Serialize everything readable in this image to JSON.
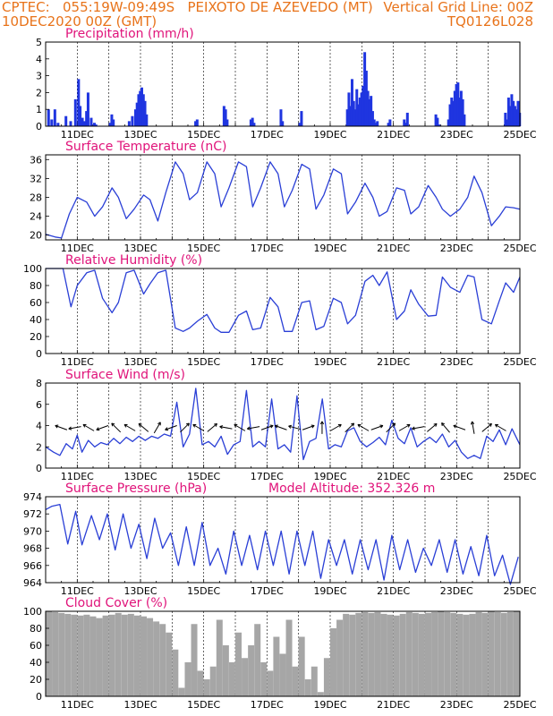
{
  "header": {
    "line1_left": "CPTEC:   055:19W-09:49S   PEIXOTO DE AZEVEDO (MT)",
    "line2_left": "10DEC2020 00Z (GMT)",
    "line2_right": "Vertical Grid Line: 00Z",
    "line3_right": "TQ0126L028"
  },
  "colors": {
    "header": "#e8731a",
    "title": "#e0137a",
    "line": "#2a3fd6",
    "bar": "#1f35e0",
    "cloud": "#a6a6a6"
  },
  "chart_data": [
    {
      "type": "bar",
      "title": "Precipitation (mm/h)",
      "x_ticks": [
        "11DEC",
        "13DEC",
        "15DEC",
        "17DEC",
        "19DEC",
        "21DEC",
        "23DEC",
        "25DEC"
      ],
      "x_range_days": [
        10,
        25
      ],
      "ylim": [
        0,
        5
      ],
      "y_ticks": [
        0,
        1,
        2,
        3,
        4,
        5
      ],
      "x": [
        10.05,
        10.15,
        10.25,
        10.35,
        10.6,
        10.75,
        10.9,
        11.0,
        11.05,
        11.12,
        11.18,
        11.25,
        11.3,
        11.4,
        11.5,
        11.55,
        12.0,
        12.05,
        12.1,
        12.6,
        12.7,
        12.8,
        12.85,
        12.9,
        12.95,
        13.0,
        13.05,
        13.1,
        13.15,
        14.7,
        14.75,
        15.6,
        15.65,
        15.7,
        16.45,
        16.5,
        16.55,
        17.4,
        17.45,
        18.0,
        18.05,
        19.5,
        19.55,
        19.6,
        19.65,
        19.7,
        19.75,
        19.8,
        19.85,
        19.9,
        19.95,
        20.0,
        20.05,
        20.1,
        20.15,
        20.2,
        20.25,
        20.3,
        20.35,
        20.4,
        20.45,
        20.8,
        20.85,
        21.3,
        21.35,
        21.4,
        22.3,
        22.35,
        22.4,
        22.7,
        22.75,
        22.8,
        22.85,
        22.9,
        22.95,
        23.0,
        23.05,
        23.1,
        23.15,
        23.2,
        24.5,
        24.55,
        24.6,
        24.65,
        24.7,
        24.75,
        24.8,
        24.85,
        24.9,
        24.95
      ],
      "values": [
        1.0,
        0.4,
        1.0,
        0.2,
        0.6,
        0.3,
        1.6,
        2.8,
        1.2,
        0.5,
        0.3,
        0.9,
        2.0,
        0.5,
        0.2,
        0.1,
        0.2,
        0.7,
        0.4,
        0.3,
        0.6,
        1.0,
        1.4,
        1.9,
        2.1,
        2.3,
        1.9,
        1.5,
        0.7,
        0.3,
        0.4,
        1.2,
        1.0,
        0.4,
        0.4,
        0.5,
        0.2,
        1.0,
        0.3,
        0.2,
        0.9,
        1.0,
        2.0,
        1.2,
        2.8,
        1.5,
        1.0,
        2.2,
        1.3,
        1.7,
        2.0,
        2.4,
        4.4,
        3.3,
        2.1,
        1.6,
        1.8,
        0.9,
        0.4,
        0.2,
        0.3,
        0.2,
        0.4,
        0.4,
        0.2,
        0.8,
        0.7,
        0.5,
        0.1,
        0.4,
        1.3,
        1.7,
        1.5,
        2.1,
        2.5,
        2.6,
        1.7,
        2.1,
        1.6,
        0.7,
        0.8,
        0.4,
        1.7,
        1.2,
        1.9,
        1.5,
        1.2,
        1.0,
        1.5,
        0.8
      ]
    },
    {
      "type": "line",
      "title": "Surface Temperature (nC)",
      "x_ticks": [
        "11DEC",
        "13DEC",
        "15DEC",
        "17DEC",
        "19DEC",
        "21DEC",
        "23DEC",
        "25DEC"
      ],
      "x_range_days": [
        10,
        25
      ],
      "ylim": [
        19,
        37
      ],
      "y_ticks": [
        20,
        24,
        28,
        32,
        36
      ],
      "x": [
        10.0,
        10.3,
        10.5,
        10.75,
        11.0,
        11.3,
        11.55,
        11.8,
        12.1,
        12.3,
        12.55,
        12.8,
        13.1,
        13.3,
        13.55,
        13.8,
        14.1,
        14.35,
        14.55,
        14.8,
        15.1,
        15.35,
        15.55,
        15.8,
        16.1,
        16.35,
        16.55,
        16.8,
        17.1,
        17.35,
        17.55,
        17.8,
        18.1,
        18.35,
        18.55,
        18.8,
        19.1,
        19.35,
        19.55,
        19.8,
        20.1,
        20.35,
        20.55,
        20.8,
        21.1,
        21.35,
        21.55,
        21.8,
        22.1,
        22.35,
        22.55,
        22.8,
        23.1,
        23.35,
        23.55,
        23.8,
        24.1,
        24.35,
        24.55,
        24.8,
        25.0
      ],
      "values": [
        20.2,
        19.6,
        19.4,
        24.5,
        28.0,
        27.0,
        24.0,
        26.0,
        30.0,
        28.0,
        23.5,
        25.5,
        28.5,
        27.5,
        23.0,
        29.0,
        35.5,
        33.0,
        27.5,
        29.0,
        35.5,
        33.0,
        26.0,
        30.0,
        35.5,
        34.5,
        26.0,
        30.0,
        35.5,
        33.0,
        26.0,
        29.5,
        35.0,
        34.0,
        25.5,
        28.5,
        34.0,
        33.0,
        24.5,
        27.0,
        31.0,
        28.0,
        24.0,
        25.0,
        30.0,
        29.5,
        24.5,
        26.0,
        30.5,
        28.0,
        25.5,
        24.0,
        25.5,
        28.0,
        32.5,
        29.0,
        22.0,
        24.0,
        26.0,
        25.8,
        25.5
      ]
    },
    {
      "type": "line",
      "title": "Relative Humidity (%)",
      "x_ticks": [
        "11DEC",
        "13DEC",
        "15DEC",
        "17DEC",
        "19DEC",
        "21DEC",
        "23DEC",
        "25DEC"
      ],
      "x_range_days": [
        10,
        25
      ],
      "ylim": [
        0,
        100
      ],
      "y_ticks": [
        0,
        20,
        40,
        60,
        80,
        100
      ],
      "x": [
        10.0,
        10.3,
        10.55,
        10.8,
        11.0,
        11.3,
        11.55,
        11.8,
        12.1,
        12.3,
        12.55,
        12.8,
        13.1,
        13.3,
        13.55,
        13.8,
        14.1,
        14.35,
        14.55,
        14.8,
        15.1,
        15.35,
        15.55,
        15.8,
        16.1,
        16.35,
        16.55,
        16.8,
        17.1,
        17.35,
        17.55,
        17.8,
        18.1,
        18.35,
        18.55,
        18.8,
        19.1,
        19.35,
        19.55,
        19.8,
        20.1,
        20.35,
        20.55,
        20.8,
        21.1,
        21.35,
        21.55,
        21.8,
        22.1,
        22.35,
        22.55,
        22.8,
        23.1,
        23.35,
        23.55,
        23.8,
        24.1,
        24.35,
        24.55,
        24.8,
        25.0
      ],
      "values": [
        100,
        100,
        100,
        55,
        80,
        95,
        98,
        65,
        48,
        60,
        95,
        98,
        70,
        82,
        95,
        98,
        30,
        26,
        30,
        38,
        46,
        30,
        25,
        25,
        45,
        50,
        28,
        30,
        66,
        55,
        26,
        26,
        60,
        62,
        28,
        32,
        65,
        60,
        35,
        45,
        85,
        92,
        80,
        96,
        40,
        50,
        75,
        58,
        44,
        45,
        90,
        78,
        72,
        92,
        90,
        40,
        35,
        62,
        83,
        72,
        90
      ]
    },
    {
      "type": "line",
      "title": "Surface Wind (m/s)",
      "x_ticks": [
        "11DEC",
        "13DEC",
        "15DEC",
        "17DEC",
        "19DEC",
        "21DEC",
        "23DEC",
        "25DEC"
      ],
      "x_range_days": [
        10,
        25
      ],
      "ylim": [
        0,
        8
      ],
      "y_ticks": [
        0,
        2,
        4,
        6,
        8
      ],
      "x": [
        10.0,
        10.25,
        10.45,
        10.65,
        10.85,
        11.0,
        11.15,
        11.35,
        11.55,
        11.75,
        11.95,
        12.15,
        12.35,
        12.55,
        12.75,
        12.95,
        13.15,
        13.35,
        13.55,
        13.75,
        13.95,
        14.15,
        14.35,
        14.55,
        14.75,
        14.95,
        15.15,
        15.35,
        15.55,
        15.75,
        15.95,
        16.15,
        16.35,
        16.55,
        16.75,
        16.95,
        17.15,
        17.35,
        17.55,
        17.75,
        17.95,
        18.15,
        18.35,
        18.55,
        18.75,
        18.95,
        19.15,
        19.35,
        19.55,
        19.75,
        19.95,
        20.15,
        20.35,
        20.55,
        20.75,
        20.95,
        21.15,
        21.35,
        21.55,
        21.75,
        21.95,
        22.15,
        22.35,
        22.55,
        22.75,
        22.95,
        23.15,
        23.35,
        23.55,
        23.75,
        23.95,
        24.15,
        24.35,
        24.55,
        24.75,
        25.0
      ],
      "values": [
        2.0,
        1.5,
        1.2,
        2.3,
        1.8,
        3.1,
        1.5,
        2.6,
        2.0,
        2.4,
        2.2,
        2.8,
        2.3,
        2.9,
        2.5,
        3.0,
        2.6,
        3.0,
        2.8,
        3.2,
        3.0,
        6.2,
        2.0,
        3.2,
        7.5,
        2.2,
        2.5,
        2.0,
        3.0,
        1.3,
        2.2,
        2.5,
        7.3,
        2.0,
        2.5,
        2.0,
        6.5,
        1.8,
        2.2,
        1.5,
        6.8,
        0.8,
        2.5,
        2.8,
        6.5,
        1.8,
        2.2,
        2.0,
        3.5,
        3.8,
        2.5,
        2.0,
        2.4,
        2.9,
        2.2,
        4.5,
        2.8,
        2.3,
        3.8,
        2.0,
        2.5,
        2.9,
        2.4,
        3.2,
        2.0,
        2.6,
        1.5,
        0.9,
        1.2,
        0.9,
        3.0,
        2.5,
        3.6,
        2.2,
        3.7,
        2.2
      ]
    },
    {
      "type": "line",
      "title": "Surface Pressure (hPa)",
      "annotation": "Model Altitude: 352.326 m",
      "x_ticks": [
        "11DEC",
        "13DEC",
        "15DEC",
        "17DEC",
        "19DEC",
        "21DEC",
        "23DEC",
        "25DEC"
      ],
      "x_range_days": [
        10,
        25
      ],
      "ylim": [
        964,
        974
      ],
      "y_ticks": [
        964,
        966,
        968,
        970,
        972,
        974
      ],
      "x": [
        10.0,
        10.2,
        10.45,
        10.7,
        10.95,
        11.15,
        11.45,
        11.7,
        11.95,
        12.2,
        12.45,
        12.7,
        12.95,
        13.2,
        13.45,
        13.7,
        13.95,
        14.2,
        14.45,
        14.7,
        14.95,
        15.2,
        15.45,
        15.7,
        15.95,
        16.2,
        16.45,
        16.7,
        16.95,
        17.2,
        17.45,
        17.7,
        17.95,
        18.2,
        18.45,
        18.7,
        18.95,
        19.2,
        19.45,
        19.7,
        19.95,
        20.2,
        20.45,
        20.7,
        20.95,
        21.2,
        21.45,
        21.7,
        21.95,
        22.2,
        22.45,
        22.7,
        22.95,
        23.2,
        23.45,
        23.7,
        23.95,
        24.2,
        24.45,
        24.7,
        24.95
      ],
      "values": [
        972.5,
        972.9,
        973.1,
        968.5,
        972.3,
        968.4,
        971.8,
        969.0,
        972.0,
        967.8,
        972.0,
        968.0,
        970.8,
        966.8,
        971.5,
        968.0,
        969.8,
        966.0,
        970.5,
        966.0,
        971.0,
        966.0,
        968.0,
        965.0,
        970.0,
        966.0,
        969.5,
        965.5,
        970.0,
        966.0,
        970.0,
        965.0,
        970.0,
        966.0,
        970.0,
        964.5,
        969.0,
        966.0,
        969.0,
        965.0,
        969.0,
        965.5,
        969.0,
        964.3,
        969.5,
        965.5,
        969.0,
        965.2,
        968.0,
        966.0,
        969.0,
        965.2,
        969.0,
        965.0,
        968.2,
        964.8,
        969.5,
        964.8,
        967.2,
        963.8,
        967.0
      ]
    },
    {
      "type": "bar",
      "title": "Cloud Cover (%)",
      "x_ticks": [
        "11DEC",
        "13DEC",
        "15DEC",
        "17DEC",
        "19DEC",
        "21DEC",
        "23DEC",
        "25DEC"
      ],
      "x_range_days": [
        10,
        25
      ],
      "ylim": [
        0,
        100
      ],
      "y_ticks": [
        0,
        20,
        40,
        60,
        80,
        100
      ],
      "x": [
        10.0,
        10.2,
        10.4,
        10.6,
        10.8,
        11.0,
        11.2,
        11.4,
        11.6,
        11.8,
        12.0,
        12.2,
        12.4,
        12.6,
        12.8,
        13.0,
        13.2,
        13.4,
        13.6,
        13.8,
        14.0,
        14.2,
        14.4,
        14.6,
        14.8,
        15.0,
        15.2,
        15.4,
        15.6,
        15.8,
        16.0,
        16.2,
        16.4,
        16.6,
        16.8,
        17.0,
        17.2,
        17.4,
        17.6,
        17.8,
        18.0,
        18.2,
        18.4,
        18.6,
        18.8,
        19.0,
        19.2,
        19.4,
        19.6,
        19.8,
        20.0,
        20.2,
        20.4,
        20.6,
        20.8,
        21.0,
        21.2,
        21.4,
        21.6,
        21.8,
        22.0,
        22.2,
        22.4,
        22.6,
        22.8,
        23.0,
        23.2,
        23.4,
        23.6,
        23.8,
        24.0,
        24.2,
        24.4,
        24.6,
        24.8
      ],
      "values": [
        100,
        99,
        98,
        97,
        96,
        95,
        96,
        94,
        92,
        95,
        96,
        98,
        96,
        97,
        95,
        94,
        92,
        88,
        85,
        75,
        55,
        10,
        40,
        85,
        30,
        20,
        35,
        90,
        60,
        40,
        75,
        45,
        60,
        85,
        40,
        30,
        70,
        50,
        90,
        35,
        70,
        20,
        35,
        5,
        45,
        80,
        90,
        97,
        96,
        98,
        99,
        98,
        99,
        97,
        96,
        95,
        97,
        99,
        98,
        97,
        98,
        99,
        100,
        99,
        98,
        97,
        96,
        97,
        99,
        98,
        100,
        99,
        98,
        99,
        100
      ]
    }
  ]
}
